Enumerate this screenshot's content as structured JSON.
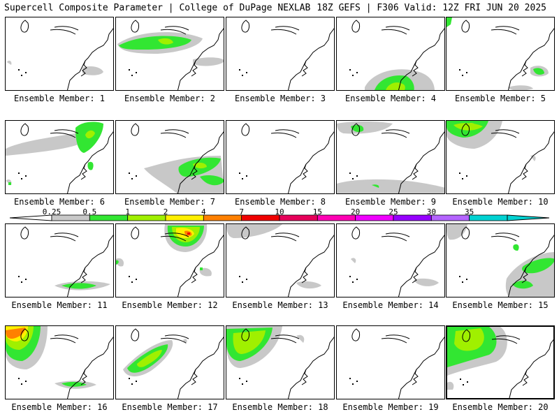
{
  "header": {
    "left": "Supercell Composite Parameter | College of DuPage NEXLAB",
    "right": "18Z GEFS | F306 Valid: 12Z FRI JUN 20 2025"
  },
  "colorbar": {
    "ticks": [
      "0.25",
      "0.5",
      "1",
      "2",
      "4",
      "7",
      "10",
      "15",
      "20",
      "25",
      "30",
      "35"
    ],
    "colors": [
      "#c8c8c8",
      "#32e632",
      "#a0f000",
      "#fff000",
      "#ff8000",
      "#f00000",
      "#e6005a",
      "#ff00b4",
      "#f000ff",
      "#9600ff",
      "#b464ff",
      "#00d2d2"
    ]
  },
  "panels": [
    {
      "label": "Ensemble Member: 1"
    },
    {
      "label": "Ensemble Member: 2"
    },
    {
      "label": "Ensemble Member: 3"
    },
    {
      "label": "Ensemble Member: 4"
    },
    {
      "label": "Ensemble Member: 5"
    },
    {
      "label": "Ensemble Member: 6"
    },
    {
      "label": "Ensemble Member: 7"
    },
    {
      "label": "Ensemble Member: 8"
    },
    {
      "label": "Ensemble Member: 9"
    },
    {
      "label": "Ensemble Member: 10"
    },
    {
      "label": "Ensemble Member: 11"
    },
    {
      "label": "Ensemble Member: 12"
    },
    {
      "label": "Ensemble Member: 13"
    },
    {
      "label": "Ensemble Member: 14"
    },
    {
      "label": "Ensemble Member: 15"
    },
    {
      "label": "Ensemble Member: 16"
    },
    {
      "label": "Ensemble Member: 17"
    },
    {
      "label": "Ensemble Member: 18"
    },
    {
      "label": "Ensemble Member: 19"
    },
    {
      "label": "Ensemble Member: 20"
    }
  ]
}
